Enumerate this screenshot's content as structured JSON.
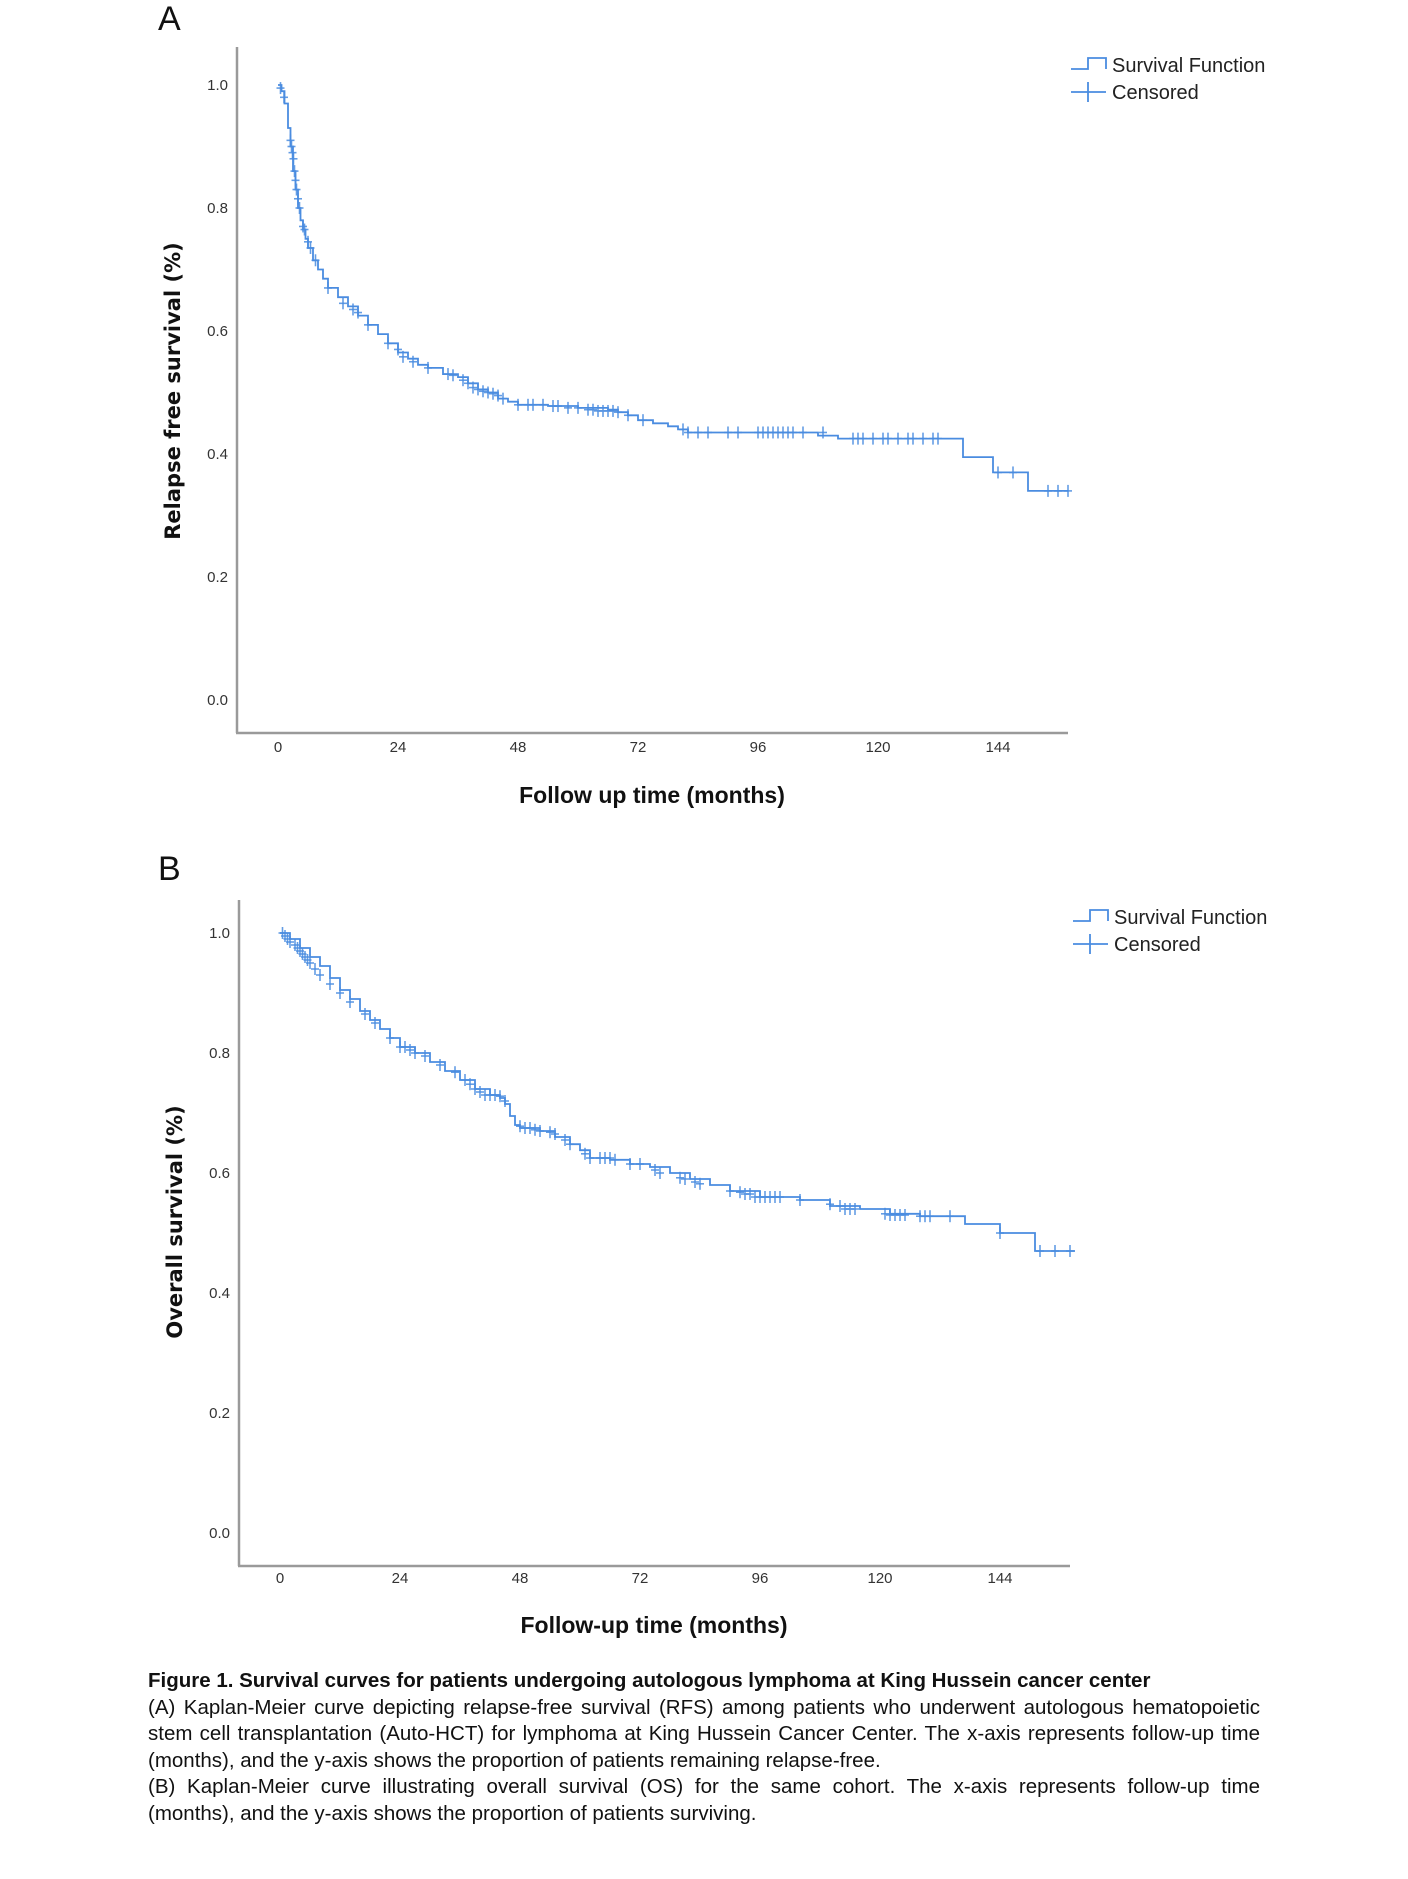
{
  "panels": [
    {
      "label": "A",
      "legend": {
        "survival": "Survival Function",
        "censored": "Censored"
      }
    },
    {
      "label": "B",
      "legend": {
        "survival": "Survival Function",
        "censored": "Censored"
      }
    }
  ],
  "colors": {
    "curve": "#4a8ce0",
    "axis": "#9a9a9a"
  },
  "chart_data": [
    {
      "type": "line",
      "subtype": "kaplan-meier-step",
      "panel": "A",
      "xlabel": "Follow up time (months)",
      "ylabel": "Relapse free survival (%)",
      "xticks": [
        "0",
        "24",
        "48",
        "72",
        "96",
        "120",
        "144"
      ],
      "xtick_values": [
        0,
        24,
        48,
        72,
        96,
        120,
        144
      ],
      "yticks": [
        "0.0",
        "0.2",
        "0.4",
        "0.6",
        "0.8",
        "1.0"
      ],
      "ytick_values": [
        0,
        0.2,
        0.4,
        0.6,
        0.8,
        1.0
      ],
      "xlim": [
        -7,
        158
      ],
      "ylim": [
        -0.05,
        1.06
      ],
      "grid": false,
      "legend_position": "top-right",
      "series": [
        {
          "name": "Survival Function",
          "x": [
            0,
            0.7,
            1.3,
            2,
            2.5,
            3,
            3.5,
            4,
            4.5,
            5,
            5.5,
            6,
            7,
            8,
            9,
            10,
            12,
            14,
            16,
            18,
            20,
            22,
            24,
            26,
            28,
            30,
            33,
            36,
            38,
            40,
            42,
            44,
            46,
            48,
            54,
            60,
            66,
            68,
            70,
            72,
            75,
            78,
            80,
            82,
            100,
            108,
            112,
            125,
            136,
            137,
            141,
            143,
            149,
            150,
            158
          ],
          "y": [
            1.0,
            0.99,
            0.97,
            0.93,
            0.9,
            0.86,
            0.83,
            0.8,
            0.78,
            0.765,
            0.75,
            0.735,
            0.715,
            0.7,
            0.685,
            0.67,
            0.655,
            0.64,
            0.625,
            0.61,
            0.595,
            0.58,
            0.565,
            0.555,
            0.545,
            0.54,
            0.53,
            0.525,
            0.515,
            0.505,
            0.5,
            0.49,
            0.485,
            0.48,
            0.478,
            0.475,
            0.472,
            0.468,
            0.463,
            0.455,
            0.45,
            0.445,
            0.44,
            0.435,
            0.435,
            0.43,
            0.425,
            0.425,
            0.425,
            0.395,
            0.395,
            0.37,
            0.37,
            0.34,
            0.34
          ]
        },
        {
          "name": "Censored",
          "x": [
            0.5,
            1.2,
            2.5,
            2.7,
            2.9,
            3.1,
            3.3,
            3.5,
            3.7,
            4.0,
            4.3,
            5.0,
            5.3,
            6.0,
            6.5,
            7.5,
            10,
            13,
            15,
            16,
            18,
            22,
            24,
            25,
            27,
            30,
            34,
            35,
            37,
            38,
            39,
            40,
            41,
            42,
            43,
            44,
            45,
            48,
            50,
            51,
            53,
            55,
            56,
            58,
            60,
            62,
            63,
            64,
            65,
            66,
            67,
            68,
            70,
            73,
            81,
            82,
            84,
            86,
            90,
            92,
            96,
            97,
            98,
            99,
            100,
            101,
            102,
            103,
            105,
            109,
            115,
            116,
            117,
            119,
            121,
            122,
            124,
            126,
            127,
            129,
            131,
            132,
            144,
            147,
            154,
            156,
            158
          ],
          "y": [
            0.995,
            0.98,
            0.91,
            0.9,
            0.89,
            0.88,
            0.86,
            0.845,
            0.83,
            0.815,
            0.8,
            0.77,
            0.765,
            0.745,
            0.735,
            0.715,
            0.67,
            0.645,
            0.635,
            0.63,
            0.61,
            0.58,
            0.57,
            0.558,
            0.55,
            0.54,
            0.53,
            0.528,
            0.52,
            0.515,
            0.508,
            0.505,
            0.502,
            0.5,
            0.498,
            0.495,
            0.49,
            0.48,
            0.48,
            0.48,
            0.48,
            0.478,
            0.478,
            0.475,
            0.475,
            0.472,
            0.472,
            0.47,
            0.47,
            0.47,
            0.47,
            0.468,
            0.463,
            0.455,
            0.44,
            0.435,
            0.435,
            0.435,
            0.435,
            0.435,
            0.435,
            0.435,
            0.435,
            0.435,
            0.435,
            0.435,
            0.435,
            0.435,
            0.435,
            0.435,
            0.425,
            0.425,
            0.425,
            0.425,
            0.425,
            0.425,
            0.425,
            0.425,
            0.425,
            0.425,
            0.425,
            0.425,
            0.37,
            0.37,
            0.34,
            0.34,
            0.34
          ]
        }
      ]
    },
    {
      "type": "line",
      "subtype": "kaplan-meier-step",
      "panel": "B",
      "xlabel": "Follow-up time (months)",
      "ylabel": "Overall survival (%)",
      "xticks": [
        "0",
        "24",
        "48",
        "72",
        "96",
        "120",
        "144"
      ],
      "xtick_values": [
        0,
        24,
        48,
        72,
        96,
        120,
        144
      ],
      "yticks": [
        "0.0",
        "0.2",
        "0.4",
        "0.6",
        "0.8",
        "1.0"
      ],
      "ytick_values": [
        0,
        0.2,
        0.4,
        0.6,
        0.8,
        1.0
      ],
      "xlim": [
        -7,
        158
      ],
      "ylim": [
        -0.05,
        1.06
      ],
      "grid": false,
      "legend_position": "top-right",
      "series": [
        {
          "name": "Survival Function",
          "x": [
            0,
            2,
            4,
            6,
            8,
            10,
            12,
            14,
            16,
            18,
            20,
            22,
            24,
            27,
            30,
            33,
            36,
            39,
            42,
            44,
            45,
            46,
            47,
            48,
            52,
            55,
            58,
            60,
            62,
            66,
            70,
            74,
            78,
            82,
            86,
            90,
            96,
            104,
            110,
            116,
            122,
            128,
            136,
            137,
            143,
            144,
            150,
            151,
            159
          ],
          "y": [
            1.0,
            0.99,
            0.975,
            0.96,
            0.945,
            0.925,
            0.905,
            0.89,
            0.87,
            0.855,
            0.84,
            0.825,
            0.81,
            0.8,
            0.785,
            0.77,
            0.755,
            0.74,
            0.73,
            0.725,
            0.715,
            0.695,
            0.68,
            0.675,
            0.67,
            0.66,
            0.648,
            0.638,
            0.625,
            0.622,
            0.615,
            0.61,
            0.6,
            0.59,
            0.58,
            0.57,
            0.56,
            0.555,
            0.545,
            0.54,
            0.532,
            0.528,
            0.528,
            0.515,
            0.515,
            0.5,
            0.5,
            0.47,
            0.47
          ]
        },
        {
          "name": "Censored",
          "x": [
            0.5,
            1,
            1.5,
            2,
            3,
            3.5,
            4,
            4.5,
            5,
            5.5,
            6,
            7,
            8,
            10,
            12,
            14,
            17,
            19,
            22,
            24,
            25,
            26,
            27,
            29,
            32,
            35,
            37,
            38,
            39,
            40,
            41,
            42,
            43,
            44,
            45,
            48,
            49,
            50,
            51,
            52,
            54,
            55,
            57,
            58,
            61,
            62,
            64,
            65,
            66,
            67,
            70,
            72,
            75,
            76,
            80,
            81,
            83,
            84,
            90,
            92,
            93,
            94,
            95,
            96,
            97,
            98,
            99,
            100,
            104,
            110,
            112,
            113,
            114,
            115,
            121,
            122,
            123,
            124,
            125,
            128,
            129,
            130,
            134,
            144,
            152,
            155,
            158
          ],
          "y": [
            1.0,
            0.995,
            0.99,
            0.985,
            0.98,
            0.975,
            0.97,
            0.965,
            0.96,
            0.955,
            0.95,
            0.94,
            0.93,
            0.915,
            0.9,
            0.885,
            0.865,
            0.85,
            0.825,
            0.81,
            0.81,
            0.805,
            0.8,
            0.795,
            0.78,
            0.768,
            0.755,
            0.748,
            0.74,
            0.735,
            0.73,
            0.73,
            0.73,
            0.728,
            0.72,
            0.678,
            0.675,
            0.675,
            0.672,
            0.67,
            0.668,
            0.665,
            0.655,
            0.648,
            0.632,
            0.625,
            0.625,
            0.625,
            0.625,
            0.622,
            0.615,
            0.615,
            0.605,
            0.6,
            0.592,
            0.59,
            0.585,
            0.582,
            0.57,
            0.568,
            0.565,
            0.565,
            0.56,
            0.56,
            0.56,
            0.56,
            0.56,
            0.56,
            0.555,
            0.548,
            0.545,
            0.54,
            0.54,
            0.54,
            0.532,
            0.53,
            0.53,
            0.53,
            0.53,
            0.528,
            0.528,
            0.528,
            0.528,
            0.5,
            0.47,
            0.47,
            0.47
          ]
        }
      ]
    }
  ],
  "caption": {
    "title": "Figure 1.   Survival curves for patients undergoing autologous lymphoma at King Hussein cancer center",
    "para_a": "(A) Kaplan-Meier curve depicting relapse-free survival (RFS) among patients who underwent autologous hematopoietic stem cell transplantation (Auto-HCT) for lymphoma at King Hussein Cancer Center. The x-axis represents follow-up time (months), and the y-axis shows the proportion of patients remaining relapse-free.",
    "para_b": "(B) Kaplan-Meier curve illustrating overall survival (OS) for the same cohort. The x-axis represents follow-up time (months), and the y-axis shows the proportion of patients surviving."
  }
}
